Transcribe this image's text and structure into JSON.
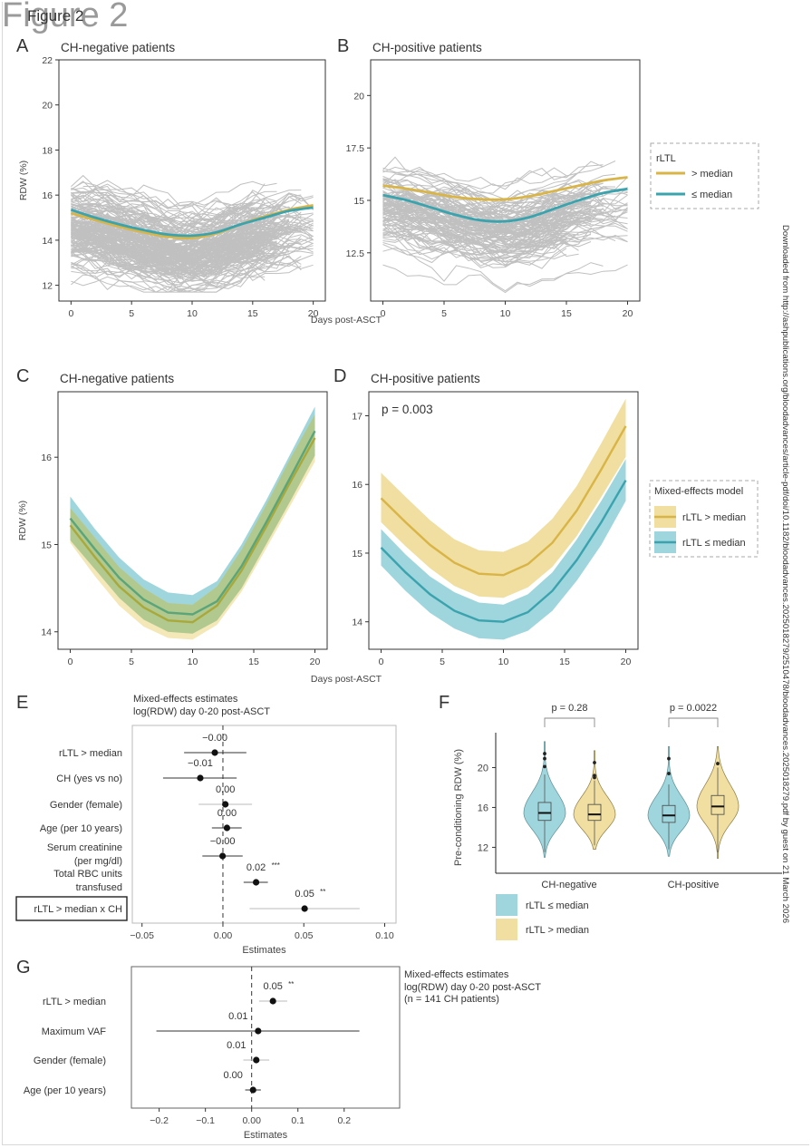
{
  "figure": {
    "title": "Figure 2",
    "title_overlay": "Figure 2",
    "side_note": "Downloaded from http://ashpublications.org/bloodadvances/article-pdf/doi/10.1182/bloodadvances.2025018279/2510478/bloodadvances.2025018279.pdf by guest on 21 March 2026",
    "panel_letters": [
      "A",
      "B",
      "C",
      "D",
      "E",
      "F",
      "G"
    ]
  },
  "colors": {
    "gold": "#d9b446",
    "teal": "#3aa3ae",
    "gold_fill": "#f0dfa0",
    "teal_fill": "#9fd5dd",
    "spaghetti": "#c0c0c0",
    "axis": "#333333"
  },
  "chart_data": [
    {
      "id": "A",
      "type": "line",
      "title": "CH-negative patients",
      "xlabel": "Days post-ASCT",
      "ylabel": "RDW (%)",
      "xlim": [
        -1,
        21
      ],
      "ylim": [
        11.3,
        22
      ],
      "xticks": [
        0,
        5,
        10,
        15,
        20
      ],
      "yticks": [
        12,
        14,
        16,
        18,
        20,
        22
      ],
      "background_series": "individual patient trajectories (grey)",
      "series": [
        {
          "name": "> median",
          "color": "gold",
          "x": [
            0,
            2,
            4,
            6,
            8,
            10,
            12,
            14,
            16,
            18,
            20
          ],
          "y": [
            15.2,
            14.9,
            14.6,
            14.35,
            14.15,
            14.1,
            14.3,
            14.7,
            15.05,
            15.35,
            15.55
          ]
        },
        {
          "name": "≤ median",
          "color": "teal",
          "x": [
            0,
            2,
            4,
            6,
            8,
            10,
            12,
            14,
            16,
            18,
            20
          ],
          "y": [
            15.35,
            15.0,
            14.7,
            14.45,
            14.25,
            14.2,
            14.35,
            14.7,
            15.0,
            15.3,
            15.45
          ]
        }
      ]
    },
    {
      "id": "B",
      "type": "line",
      "title": "CH-positive patients",
      "xlabel": "Days post-ASCT",
      "ylabel": "",
      "xlim": [
        -1,
        21
      ],
      "ylim": [
        10.2,
        21.7
      ],
      "xticks": [
        0,
        5,
        10,
        15,
        20
      ],
      "yticks": [
        12.5,
        15,
        17.5,
        20
      ],
      "legend": {
        "title": "rLTL",
        "position": "right",
        "entries": [
          "> median",
          "≤ median"
        ]
      },
      "series": [
        {
          "name": "> median",
          "color": "gold",
          "x": [
            0,
            2,
            4,
            6,
            8,
            10,
            12,
            14,
            16,
            18,
            20
          ],
          "y": [
            15.7,
            15.55,
            15.35,
            15.15,
            15.05,
            15.05,
            15.2,
            15.45,
            15.7,
            15.95,
            16.1
          ]
        },
        {
          "name": "≤ median",
          "color": "teal",
          "x": [
            0,
            2,
            4,
            6,
            8,
            10,
            12,
            14,
            16,
            18,
            20
          ],
          "y": [
            15.25,
            15.0,
            14.65,
            14.3,
            14.05,
            14.0,
            14.2,
            14.6,
            15.0,
            15.35,
            15.55
          ]
        }
      ]
    },
    {
      "id": "C",
      "type": "area",
      "title": "CH-negative patients",
      "xlabel": "Days post-ASCT",
      "ylabel": "RDW (%)",
      "xlim": [
        -1,
        21
      ],
      "ylim": [
        13.8,
        16.75
      ],
      "xticks": [
        0,
        5,
        10,
        15,
        20
      ],
      "yticks": [
        14,
        15,
        16
      ],
      "series": [
        {
          "name": "rLTL > median",
          "color": "gold",
          "x": [
            0,
            2,
            4,
            6,
            8,
            10,
            12,
            14,
            16,
            18,
            20
          ],
          "y": [
            15.22,
            14.86,
            14.52,
            14.28,
            14.13,
            14.11,
            14.3,
            14.7,
            15.2,
            15.72,
            16.22
          ],
          "lower": [
            15.02,
            14.64,
            14.3,
            14.06,
            13.93,
            13.91,
            14.08,
            14.46,
            14.95,
            15.45,
            15.95
          ],
          "upper": [
            15.42,
            15.08,
            14.74,
            14.5,
            14.33,
            14.31,
            14.52,
            14.94,
            15.45,
            15.99,
            16.49
          ]
        },
        {
          "name": "rLTL ≤ median",
          "color": "teal",
          "x": [
            0,
            2,
            4,
            6,
            8,
            10,
            12,
            14,
            16,
            18,
            20
          ],
          "y": [
            15.3,
            14.95,
            14.62,
            14.37,
            14.22,
            14.2,
            14.35,
            14.75,
            15.25,
            15.77,
            16.3
          ],
          "lower": [
            15.05,
            14.72,
            14.39,
            14.14,
            14.0,
            13.98,
            14.13,
            14.5,
            15.0,
            15.5,
            16.02
          ],
          "upper": [
            15.55,
            15.18,
            14.85,
            14.6,
            14.45,
            14.42,
            14.58,
            15.0,
            15.5,
            16.04,
            16.58
          ]
        }
      ]
    },
    {
      "id": "D",
      "type": "area",
      "title": "CH-positive patients",
      "xlabel": "Days post-ASCT",
      "ylabel": "",
      "annotation": "p = 0.003",
      "xlim": [
        -1,
        21
      ],
      "ylim": [
        13.6,
        17.35
      ],
      "xticks": [
        0,
        5,
        10,
        15,
        20
      ],
      "yticks": [
        14,
        15,
        16,
        17
      ],
      "legend": {
        "title": "Mixed-effects model",
        "position": "right",
        "entries": [
          "rLTL > median",
          "rLTL ≤ median"
        ]
      },
      "series": [
        {
          "name": "rLTL > median",
          "color": "gold",
          "x": [
            0,
            2,
            4,
            6,
            8,
            10,
            12,
            14,
            16,
            18,
            20
          ],
          "y": [
            15.8,
            15.45,
            15.12,
            14.86,
            14.7,
            14.68,
            14.84,
            15.15,
            15.62,
            16.22,
            16.85
          ],
          "lower": [
            15.45,
            15.1,
            14.78,
            14.52,
            14.37,
            14.35,
            14.5,
            14.8,
            15.25,
            15.82,
            16.4
          ],
          "upper": [
            16.17,
            15.82,
            15.48,
            15.2,
            15.04,
            15.02,
            15.17,
            15.5,
            15.98,
            16.6,
            17.25
          ]
        },
        {
          "name": "rLTL ≤ median",
          "color": "teal",
          "x": [
            0,
            2,
            4,
            6,
            8,
            10,
            12,
            14,
            16,
            18,
            20
          ],
          "y": [
            15.08,
            14.72,
            14.4,
            14.16,
            14.02,
            14.0,
            14.14,
            14.45,
            14.9,
            15.45,
            16.06
          ],
          "lower": [
            14.82,
            14.45,
            14.13,
            13.9,
            13.76,
            13.74,
            13.87,
            14.16,
            14.6,
            15.12,
            15.76
          ],
          "upper": [
            15.35,
            14.98,
            14.66,
            14.43,
            14.28,
            14.25,
            14.4,
            14.72,
            15.2,
            15.76,
            16.37
          ]
        }
      ]
    },
    {
      "id": "E",
      "type": "scatter",
      "subtype": "forest",
      "title": "Mixed-effects estimates",
      "subtitle": "log(RDW) day 0-20 post-ASCT",
      "xlabel": "Estimates",
      "xlim": [
        -0.056,
        0.107
      ],
      "xticks": [
        -0.05,
        0.0,
        0.05,
        0.1
      ],
      "xtick_labels": [
        "−0.05",
        "0.00",
        "0.05",
        "0.10"
      ],
      "reference_line": 0,
      "rows": [
        {
          "label": [
            "rLTL > median"
          ],
          "estimate": -0.005,
          "ci": [
            -0.024,
            0.0145
          ],
          "value_label": "−0.00",
          "sig": "",
          "boxed": false
        },
        {
          "label": [
            "CH (yes vs no)"
          ],
          "estimate": -0.014,
          "ci": [
            -0.037,
            0.0085
          ],
          "value_label": "−0.01",
          "sig": "",
          "boxed": false
        },
        {
          "label": [
            "Gender (female)"
          ],
          "estimate": 0.0015,
          "ci": [
            -0.015,
            0.018
          ],
          "value_label": "0.00",
          "sig": "",
          "boxed": false
        },
        {
          "label": [
            "Age (per 10 years)"
          ],
          "estimate": 0.0025,
          "ci": [
            -0.0068,
            0.0116
          ],
          "value_label": "0.00",
          "sig": "",
          "boxed": false
        },
        {
          "label": [
            "Serum creatinine",
            "(per mg/dl)"
          ],
          "estimate": -0.0002,
          "ci": [
            -0.0127,
            0.0122
          ],
          "value_label": "−0.00",
          "sig": "",
          "boxed": false
        },
        {
          "label": [
            "Total RBC units",
            "transfused"
          ],
          "estimate": 0.0205,
          "ci": [
            0.0128,
            0.0278
          ],
          "value_label": "0.02",
          "sig": "***",
          "boxed": false
        },
        {
          "label": [
            "rLTL > median x CH"
          ],
          "estimate": 0.0505,
          "ci": [
            0.0165,
            0.0845
          ],
          "value_label": "0.05",
          "sig": "**",
          "boxed": true
        }
      ]
    },
    {
      "id": "F",
      "type": "scatter",
      "subtype": "violin",
      "ylabel": "Pre-conditioning RDW (%)",
      "ylim": [
        9.4,
        23.5
      ],
      "yticks": [
        12,
        16,
        20
      ],
      "categories": [
        "CH-negative",
        "CH-positive"
      ],
      "legend": {
        "position": "bottom-left",
        "entries": [
          "rLTL ≤ median",
          "rLTL > median"
        ]
      },
      "comparisons": [
        {
          "category": "CH-negative",
          "label": "p = 0.28"
        },
        {
          "category": "CH-positive",
          "label": "p = 0.0022"
        }
      ],
      "groups": [
        {
          "category": "CH-negative",
          "series": "rLTL ≤ median",
          "color": "teal",
          "min": 11.0,
          "q1": 14.7,
          "median": 15.45,
          "q3": 16.5,
          "max": 22.6,
          "whisker_low": 11.5,
          "whisker_high": 19.3,
          "outliers": [
            20.1,
            20.9,
            21.4
          ]
        },
        {
          "category": "CH-negative",
          "series": "rLTL > median",
          "color": "gold",
          "min": 11.8,
          "q1": 14.7,
          "median": 15.3,
          "q3": 16.3,
          "max": 21.7,
          "whisker_low": 12.2,
          "whisker_high": 18.7,
          "outliers": [
            19.0,
            19.2,
            20.5
          ]
        },
        {
          "category": "CH-positive",
          "series": "rLTL ≤ median",
          "color": "teal",
          "min": 11.1,
          "q1": 14.5,
          "median": 15.2,
          "q3": 16.2,
          "max": 22.1,
          "whisker_low": 11.8,
          "whisker_high": 18.3,
          "outliers": [
            19.4,
            20.9
          ]
        },
        {
          "category": "CH-positive",
          "series": "rLTL > median",
          "color": "gold",
          "min": 10.9,
          "q1": 15.3,
          "median": 16.1,
          "q3": 17.2,
          "max": 22.1,
          "whisker_low": 11.5,
          "whisker_high": 20.0,
          "outliers": [
            20.4
          ]
        }
      ]
    },
    {
      "id": "G",
      "type": "scatter",
      "subtype": "forest",
      "title": "Mixed-effects estimates",
      "subtitle": "log(RDW) day 0-20 post-ASCT",
      "note": "(n = 141 CH patients)",
      "xlabel": "Estimates",
      "xlim": [
        -0.26,
        0.32
      ],
      "xticks": [
        -0.2,
        -0.1,
        0.0,
        0.1,
        0.2
      ],
      "xtick_labels": [
        "−0.2",
        "−0.1",
        "0.00",
        "0.1",
        "0.2"
      ],
      "reference_line": 0,
      "rows": [
        {
          "label": [
            "rLTL > median"
          ],
          "estimate": 0.046,
          "ci": [
            0.016,
            0.077
          ],
          "value_label": "0.05",
          "sig": "**"
        },
        {
          "label": [
            "Maximum VAF"
          ],
          "estimate": 0.014,
          "ci": [
            -0.206,
            0.233
          ],
          "value_label": "0.01",
          "sig": ""
        },
        {
          "label": [
            "Gender (female)"
          ],
          "estimate": 0.01,
          "ci": [
            -0.018,
            0.038
          ],
          "value_label": "0.01",
          "sig": ""
        },
        {
          "label": [
            "Age (per 10 years)"
          ],
          "estimate": 0.003,
          "ci": [
            -0.014,
            0.02
          ],
          "value_label": "0.00",
          "sig": ""
        }
      ]
    }
  ],
  "shared": {
    "x_axis_label_AB": "Days post-ASCT",
    "x_axis_label_CD": "Days post-ASCT"
  }
}
